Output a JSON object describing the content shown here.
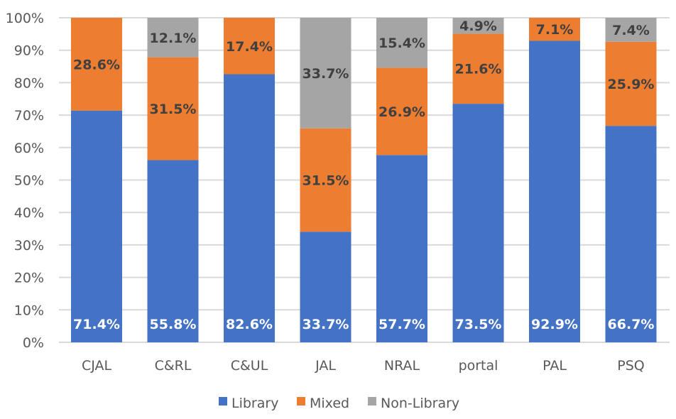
{
  "chart_data": {
    "type": "bar",
    "stacked": "percent",
    "categories": [
      "CJAL",
      "C&RL",
      "C&UL",
      "JAL",
      "NRAL",
      "portal",
      "PAL",
      "PSQ"
    ],
    "series": [
      {
        "name": "Library",
        "color": "#4472C4",
        "values": [
          71.4,
          55.8,
          82.6,
          33.7,
          57.7,
          73.5,
          92.9,
          66.7
        ],
        "labels": [
          "71.4%",
          "55.8%",
          "82.6%",
          "33.7%",
          "57.7%",
          "73.5%",
          "92.9%",
          "66.7%"
        ]
      },
      {
        "name": "Mixed",
        "color": "#ED7D31",
        "values": [
          28.6,
          31.5,
          17.4,
          31.5,
          26.9,
          21.6,
          7.1,
          25.9
        ],
        "labels": [
          "28.6%",
          "31.5%",
          "17.4%",
          "31.5%",
          "26.9%",
          "21.6%",
          "7.1%",
          "25.9%"
        ]
      },
      {
        "name": "Non-Library",
        "color": "#A5A5A5",
        "values": [
          0,
          12.1,
          0,
          33.7,
          15.4,
          4.9,
          0,
          7.4
        ],
        "labels": [
          "",
          "12.1%",
          "",
          "33.7%",
          "15.4%",
          "4.9%",
          "",
          "7.4%"
        ]
      }
    ],
    "yticks": [
      "0%",
      "10%",
      "20%",
      "30%",
      "40%",
      "50%",
      "60%",
      "70%",
      "80%",
      "90%",
      "100%"
    ],
    "ylim": [
      0,
      100
    ],
    "grid": true,
    "legend": "bottom",
    "title": "",
    "xlabel": "",
    "ylabel": ""
  }
}
